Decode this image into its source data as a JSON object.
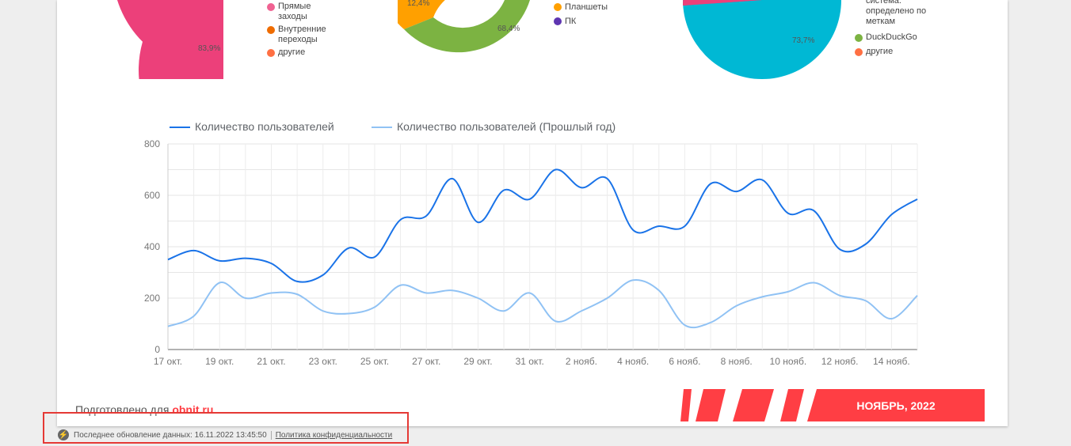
{
  "pie1": {
    "value_label": "83,9%",
    "legend": [
      {
        "label": "Прямые заходы",
        "color": "#f06292"
      },
      {
        "label": "Внутренние переходы",
        "color": "#ef6c00"
      },
      {
        "label": "другие",
        "color": "#ff7043"
      }
    ]
  },
  "pie2": {
    "labels": [
      "12,4%",
      "68,4%"
    ],
    "legend": [
      {
        "label": "Планшеты",
        "color": "#ffa000"
      },
      {
        "label": "ПК",
        "color": "#5e35b1"
      }
    ]
  },
  "pie3": {
    "value_label": "73,7%",
    "legend": [
      {
        "label": "система. определено по меткам",
        "color": ""
      },
      {
        "label": "DuckDuckGo",
        "color": "#7cb342"
      },
      {
        "label": "другие",
        "color": "#ff7043"
      }
    ]
  },
  "chart_data": {
    "type": "line",
    "x": [
      "17 окт.",
      "18 окт.",
      "19 окт.",
      "20 окт.",
      "21 окт.",
      "22 окт.",
      "23 окт.",
      "24 окт.",
      "25 окт.",
      "26 окт.",
      "27 окт.",
      "28 окт.",
      "29 окт.",
      "30 окт.",
      "31 окт.",
      "1 нояб.",
      "2 нояб.",
      "3 нояб.",
      "4 нояб.",
      "5 нояб.",
      "6 нояб.",
      "7 нояб.",
      "8 нояб.",
      "9 нояб.",
      "10 нояб.",
      "11 нояб.",
      "12 нояб.",
      "13 нояб.",
      "14 нояб.",
      "15 нояб."
    ],
    "xticks": [
      "17 окт.",
      "19 окт.",
      "21 окт.",
      "23 окт.",
      "25 окт.",
      "27 окт.",
      "29 окт.",
      "31 окт.",
      "2 нояб.",
      "4 нояб.",
      "6 нояб.",
      "8 нояб.",
      "10 нояб.",
      "12 нояб.",
      "14 нояб."
    ],
    "yticks": [
      "0",
      "200",
      "400",
      "600",
      "800"
    ],
    "ylim": [
      0,
      800
    ],
    "grid": true,
    "legend_position": "top-left",
    "series": [
      {
        "name": "Количество пользователей",
        "color": "#1a73e8",
        "values": [
          350,
          385,
          345,
          355,
          335,
          265,
          290,
          395,
          360,
          505,
          520,
          665,
          495,
          620,
          585,
          700,
          630,
          665,
          465,
          480,
          480,
          645,
          615,
          660,
          530,
          540,
          390,
          410,
          525,
          585
        ]
      },
      {
        "name": "Количество пользователей (Прошлый год)",
        "color": "#90c2f4",
        "values": [
          90,
          130,
          260,
          200,
          220,
          215,
          150,
          140,
          165,
          250,
          220,
          230,
          200,
          150,
          220,
          110,
          150,
          200,
          270,
          230,
          95,
          105,
          170,
          205,
          225,
          260,
          210,
          190,
          120,
          210
        ]
      }
    ]
  },
  "footer": {
    "prepared_for": "Подготовлено для",
    "site": "obnit.ru",
    "month": "НОЯБРЬ, 2022"
  },
  "status_bar": {
    "last_update": "Последнее обновление данных: 16.11.2022 13:45:50",
    "privacy_link": "Политика конфиденциальности"
  }
}
